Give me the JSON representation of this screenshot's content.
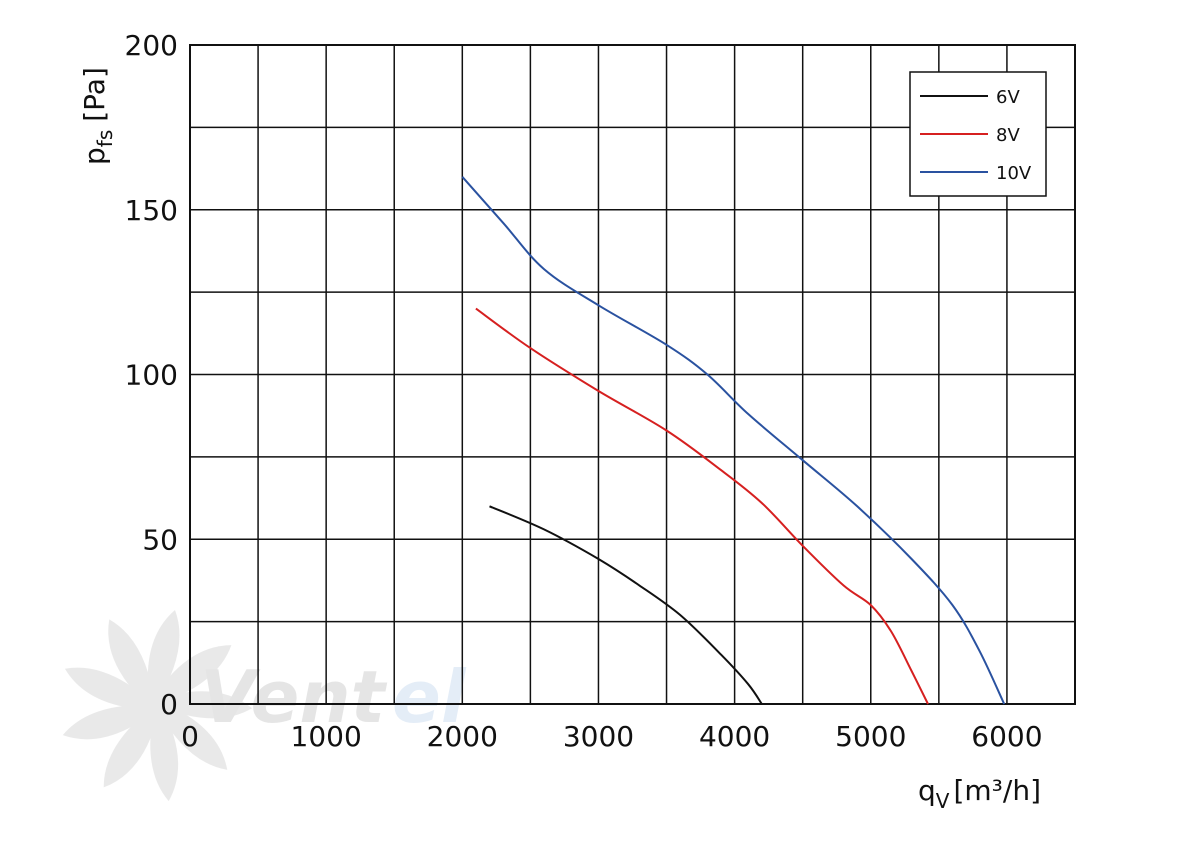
{
  "chart_data": {
    "type": "line",
    "xlabel": "q",
    "xlabel_sub": "V",
    "xlabel_unit": "[m³/h]",
    "ylabel": "p",
    "ylabel_sub": "fs",
    "ylabel_unit": "[Pa]",
    "xlim": [
      0,
      6500
    ],
    "ylim": [
      0,
      200
    ],
    "x_ticks": [
      0,
      1000,
      2000,
      3000,
      4000,
      5000,
      6000
    ],
    "x_tick_labels": [
      "0",
      "1000",
      "2000",
      "3000",
      "4000",
      "5000",
      "6000"
    ],
    "y_ticks": [
      0,
      50,
      100,
      150,
      200
    ],
    "y_tick_labels": [
      "0",
      "50",
      "100",
      "150",
      "200"
    ],
    "grid": true,
    "legend_position": "top-right",
    "series": [
      {
        "name": "6V",
        "color": "#111111",
        "points": [
          [
            2200,
            60
          ],
          [
            2600,
            53
          ],
          [
            3000,
            44
          ],
          [
            3300,
            36
          ],
          [
            3600,
            27
          ],
          [
            3900,
            15
          ],
          [
            4100,
            6
          ],
          [
            4200,
            0
          ]
        ]
      },
      {
        "name": "8V",
        "color": "#d62020",
        "points": [
          [
            2100,
            120
          ],
          [
            2500,
            108
          ],
          [
            3000,
            95
          ],
          [
            3500,
            83
          ],
          [
            3900,
            71
          ],
          [
            4200,
            61
          ],
          [
            4500,
            48
          ],
          [
            4800,
            36
          ],
          [
            5000,
            30
          ],
          [
            5150,
            22
          ],
          [
            5300,
            10
          ],
          [
            5420,
            0
          ]
        ]
      },
      {
        "name": "10V",
        "color": "#2a52a0",
        "points": [
          [
            2000,
            160
          ],
          [
            2300,
            146
          ],
          [
            2600,
            132
          ],
          [
            3000,
            121
          ],
          [
            3500,
            109
          ],
          [
            3800,
            100
          ],
          [
            4100,
            88
          ],
          [
            4500,
            74
          ],
          [
            4900,
            60
          ],
          [
            5300,
            44
          ],
          [
            5600,
            30
          ],
          [
            5800,
            16
          ],
          [
            5980,
            0
          ]
        ]
      }
    ]
  },
  "watermark": {
    "text_a": "Vent",
    "text_b": "el"
  }
}
